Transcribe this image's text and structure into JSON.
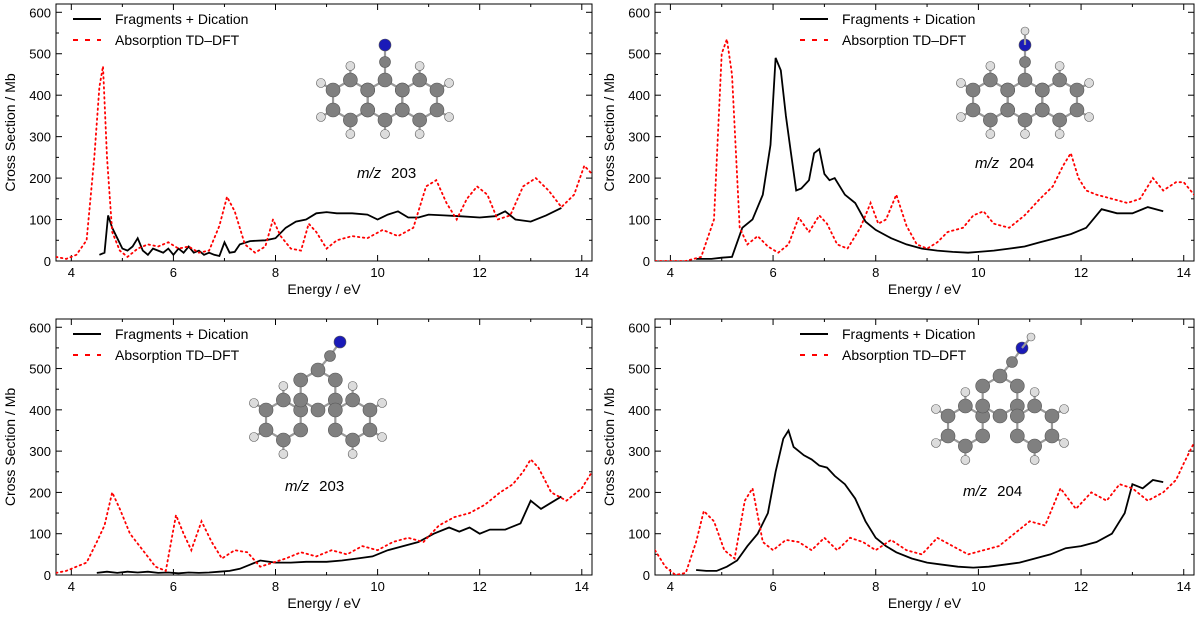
{
  "colors": {
    "fragments": "#000000",
    "tddft": "#ff0000",
    "axis": "#000000",
    "carbon": "#808080",
    "hydrogen": "#dcdcdc",
    "nitrogen": "#1a1ab8"
  },
  "chart_data": [
    {
      "type": "line",
      "panel": "top-left",
      "xlabel": "Energy / eV",
      "ylabel": "Cross Section / Mb",
      "xlim": [
        3.7,
        14.2
      ],
      "ylim": [
        0,
        620
      ],
      "xticks": [
        4,
        6,
        8,
        10,
        12,
        14
      ],
      "yticks": [
        0,
        100,
        200,
        300,
        400,
        500,
        600
      ],
      "legend": [
        "Fragments + Dication",
        "Absorption TD–DFT"
      ],
      "annotation": {
        "prefix": "m/z",
        "value": "203"
      },
      "molecule": "anthracene-cn",
      "series": [
        {
          "name": "Fragments + Dication",
          "style": "solid",
          "x": [
            4.55,
            4.65,
            4.72,
            4.8,
            4.9,
            5.0,
            5.1,
            5.2,
            5.3,
            5.4,
            5.5,
            5.6,
            5.7,
            5.8,
            5.9,
            6.0,
            6.1,
            6.2,
            6.3,
            6.4,
            6.5,
            6.6,
            6.7,
            6.8,
            6.9,
            7.0,
            7.1,
            7.2,
            7.3,
            7.5,
            7.8,
            8.0,
            8.2,
            8.4,
            8.6,
            8.8,
            9.0,
            9.2,
            9.5,
            9.8,
            10.0,
            10.2,
            10.4,
            10.6,
            10.8,
            11.0,
            11.3,
            11.6,
            12.0,
            12.3,
            12.5,
            12.7,
            13.0,
            13.3,
            13.6
          ],
          "y": [
            15,
            20,
            110,
            80,
            55,
            30,
            25,
            35,
            55,
            25,
            15,
            30,
            25,
            20,
            30,
            15,
            30,
            20,
            35,
            20,
            25,
            15,
            20,
            15,
            12,
            45,
            20,
            22,
            40,
            48,
            50,
            55,
            80,
            95,
            100,
            115,
            118,
            115,
            115,
            112,
            100,
            112,
            120,
            105,
            105,
            112,
            110,
            108,
            105,
            108,
            120,
            100,
            95,
            110,
            128
          ]
        },
        {
          "name": "Absorption TD–DFT",
          "style": "dotted",
          "x": [
            3.7,
            3.9,
            4.1,
            4.3,
            4.45,
            4.55,
            4.62,
            4.7,
            4.8,
            4.95,
            5.1,
            5.3,
            5.5,
            5.7,
            5.9,
            6.1,
            6.3,
            6.5,
            6.7,
            6.9,
            7.05,
            7.2,
            7.4,
            7.6,
            7.8,
            7.95,
            8.1,
            8.3,
            8.5,
            8.65,
            8.8,
            9.0,
            9.2,
            9.5,
            9.8,
            10.1,
            10.4,
            10.7,
            10.95,
            11.15,
            11.35,
            11.55,
            11.75,
            11.95,
            12.15,
            12.35,
            12.6,
            12.85,
            13.1,
            13.35,
            13.6,
            13.85,
            14.05,
            14.2
          ],
          "y": [
            10,
            5,
            15,
            50,
            250,
            420,
            470,
            250,
            70,
            25,
            10,
            30,
            40,
            35,
            45,
            30,
            35,
            20,
            25,
            85,
            155,
            120,
            40,
            20,
            35,
            100,
            60,
            30,
            25,
            90,
            70,
            30,
            50,
            60,
            55,
            75,
            60,
            80,
            180,
            195,
            140,
            100,
            150,
            180,
            160,
            100,
            110,
            180,
            200,
            170,
            130,
            160,
            230,
            210
          ]
        }
      ]
    },
    {
      "type": "line",
      "panel": "top-right",
      "xlabel": "Energy / eV",
      "ylabel": "Cross Section / Mb",
      "xlim": [
        3.7,
        14.2
      ],
      "ylim": [
        0,
        620
      ],
      "xticks": [
        4,
        6,
        8,
        10,
        12,
        14
      ],
      "yticks": [
        0,
        100,
        200,
        300,
        400,
        500,
        600
      ],
      "legend": [
        "Fragments + Dication",
        "Absorption TD–DFT"
      ],
      "annotation": {
        "prefix": "m/z",
        "value": "204"
      },
      "molecule": "anthracene-cnh",
      "series": [
        {
          "name": "Fragments + Dication",
          "style": "solid",
          "x": [
            4.5,
            4.8,
            5.0,
            5.2,
            5.4,
            5.6,
            5.8,
            5.95,
            6.05,
            6.15,
            6.25,
            6.35,
            6.45,
            6.55,
            6.7,
            6.8,
            6.9,
            7.0,
            7.1,
            7.2,
            7.4,
            7.6,
            7.8,
            8.0,
            8.3,
            8.6,
            8.9,
            9.2,
            9.5,
            9.8,
            10.0,
            10.3,
            10.6,
            10.9,
            11.2,
            11.5,
            11.8,
            12.1,
            12.4,
            12.7,
            13.0,
            13.3,
            13.6
          ],
          "y": [
            5,
            5,
            8,
            10,
            80,
            100,
            160,
            280,
            490,
            460,
            350,
            260,
            170,
            175,
            195,
            260,
            270,
            210,
            195,
            200,
            160,
            140,
            95,
            75,
            55,
            40,
            30,
            25,
            22,
            20,
            22,
            25,
            30,
            35,
            45,
            55,
            65,
            80,
            125,
            115,
            115,
            130,
            120
          ]
        },
        {
          "name": "Absorption TD–DFT",
          "style": "dotted",
          "x": [
            3.7,
            4.0,
            4.3,
            4.6,
            4.85,
            5.0,
            5.1,
            5.2,
            5.35,
            5.5,
            5.7,
            5.9,
            6.1,
            6.3,
            6.5,
            6.7,
            6.9,
            7.05,
            7.25,
            7.45,
            7.7,
            7.9,
            8.05,
            8.2,
            8.4,
            8.6,
            8.8,
            9.0,
            9.2,
            9.4,
            9.7,
            9.9,
            10.1,
            10.3,
            10.6,
            10.9,
            11.2,
            11.45,
            11.65,
            11.8,
            11.95,
            12.1,
            12.3,
            12.6,
            12.9,
            13.15,
            13.4,
            13.6,
            13.85,
            14.0,
            14.2
          ],
          "y": [
            0,
            0,
            0,
            10,
            100,
            500,
            535,
            450,
            80,
            40,
            60,
            35,
            20,
            40,
            105,
            70,
            110,
            90,
            40,
            30,
            80,
            140,
            90,
            100,
            160,
            85,
            40,
            30,
            45,
            70,
            80,
            110,
            120,
            90,
            80,
            110,
            150,
            180,
            230,
            260,
            200,
            170,
            160,
            150,
            140,
            150,
            200,
            170,
            190,
            190,
            160
          ]
        }
      ]
    },
    {
      "type": "line",
      "panel": "bottom-left",
      "xlabel": "Energy / eV",
      "ylabel": "Cross Section / Mb",
      "xlim": [
        3.7,
        14.2
      ],
      "ylim": [
        0,
        620
      ],
      "xticks": [
        4,
        6,
        8,
        10,
        12,
        14
      ],
      "yticks": [
        0,
        100,
        200,
        300,
        400,
        500,
        600
      ],
      "legend": [
        "Fragments + Dication",
        "Absorption TD–DFT"
      ],
      "annotation": {
        "prefix": "m/z",
        "value": "203"
      },
      "molecule": "phenanthrene-cn",
      "series": [
        {
          "name": "Fragments + Dication",
          "style": "solid",
          "x": [
            4.5,
            4.7,
            4.9,
            5.1,
            5.3,
            5.5,
            5.7,
            5.9,
            6.1,
            6.3,
            6.5,
            6.7,
            6.9,
            7.1,
            7.3,
            7.5,
            7.7,
            8.0,
            8.3,
            8.6,
            9.0,
            9.3,
            9.6,
            9.9,
            10.2,
            10.5,
            10.8,
            11.1,
            11.4,
            11.6,
            11.8,
            12.0,
            12.2,
            12.5,
            12.8,
            13.0,
            13.2,
            13.4,
            13.6
          ],
          "y": [
            5,
            8,
            5,
            8,
            6,
            8,
            5,
            6,
            4,
            6,
            5,
            6,
            8,
            10,
            15,
            25,
            35,
            30,
            30,
            32,
            32,
            35,
            40,
            45,
            60,
            70,
            80,
            100,
            115,
            105,
            115,
            100,
            110,
            110,
            125,
            180,
            160,
            175,
            190
          ]
        },
        {
          "name": "Absorption TD–DFT",
          "style": "dotted",
          "x": [
            3.7,
            3.9,
            4.1,
            4.3,
            4.5,
            4.65,
            4.8,
            4.95,
            5.15,
            5.4,
            5.65,
            5.85,
            6.05,
            6.2,
            6.35,
            6.55,
            6.75,
            6.95,
            7.2,
            7.45,
            7.7,
            7.95,
            8.2,
            8.5,
            8.8,
            9.1,
            9.4,
            9.7,
            10.0,
            10.3,
            10.6,
            10.9,
            11.2,
            11.5,
            11.8,
            12.1,
            12.4,
            12.65,
            12.85,
            13.0,
            13.15,
            13.4,
            13.7,
            14.0,
            14.2
          ],
          "y": [
            5,
            10,
            20,
            30,
            80,
            120,
            200,
            160,
            100,
            60,
            20,
            10,
            145,
            100,
            60,
            130,
            80,
            40,
            60,
            55,
            20,
            30,
            40,
            55,
            45,
            60,
            50,
            70,
            60,
            80,
            90,
            80,
            120,
            140,
            150,
            170,
            200,
            220,
            250,
            280,
            260,
            200,
            180,
            210,
            250
          ]
        }
      ]
    },
    {
      "type": "line",
      "panel": "bottom-right",
      "xlabel": "Energy / eV",
      "ylabel": "Cross Section / Mb",
      "xlim": [
        3.7,
        14.2
      ],
      "ylim": [
        0,
        620
      ],
      "xticks": [
        4,
        6,
        8,
        10,
        12,
        14
      ],
      "yticks": [
        0,
        100,
        200,
        300,
        400,
        500,
        600
      ],
      "legend": [
        "Fragments + Dication",
        "Absorption TD–DFT"
      ],
      "annotation": {
        "prefix": "m/z",
        "value": "204"
      },
      "molecule": "phenanthrene-cnh",
      "series": [
        {
          "name": "Fragments + Dication",
          "style": "solid",
          "x": [
            4.5,
            4.7,
            4.9,
            5.1,
            5.3,
            5.5,
            5.7,
            5.9,
            6.05,
            6.2,
            6.3,
            6.4,
            6.5,
            6.6,
            6.75,
            6.9,
            7.05,
            7.2,
            7.4,
            7.6,
            7.8,
            8.0,
            8.2,
            8.4,
            8.7,
            9.0,
            9.3,
            9.6,
            9.9,
            10.2,
            10.5,
            10.8,
            11.1,
            11.4,
            11.7,
            12.0,
            12.3,
            12.6,
            12.85,
            13.0,
            13.2,
            13.4,
            13.6
          ],
          "y": [
            12,
            10,
            10,
            20,
            35,
            70,
            100,
            150,
            250,
            330,
            350,
            310,
            300,
            290,
            280,
            265,
            260,
            240,
            220,
            185,
            130,
            90,
            70,
            55,
            40,
            30,
            25,
            20,
            18,
            20,
            25,
            30,
            40,
            50,
            65,
            70,
            80,
            100,
            150,
            220,
            210,
            230,
            225
          ]
        },
        {
          "name": "Absorption TD–DFT",
          "style": "dotted",
          "x": [
            3.7,
            3.9,
            4.1,
            4.3,
            4.5,
            4.65,
            4.85,
            5.05,
            5.25,
            5.45,
            5.6,
            5.8,
            6.0,
            6.25,
            6.5,
            6.75,
            7.0,
            7.25,
            7.5,
            7.75,
            8.0,
            8.3,
            8.6,
            8.9,
            9.2,
            9.5,
            9.8,
            10.1,
            10.4,
            10.7,
            11.0,
            11.3,
            11.6,
            11.9,
            12.2,
            12.5,
            12.75,
            13.0,
            13.3,
            13.6,
            13.85,
            14.0,
            14.2
          ],
          "y": [
            60,
            20,
            0,
            5,
            80,
            155,
            130,
            60,
            40,
            180,
            210,
            80,
            60,
            85,
            80,
            60,
            90,
            60,
            90,
            80,
            60,
            85,
            60,
            50,
            90,
            70,
            50,
            60,
            70,
            100,
            130,
            120,
            210,
            160,
            200,
            180,
            220,
            210,
            180,
            200,
            230,
            270,
            320
          ]
        }
      ]
    }
  ]
}
